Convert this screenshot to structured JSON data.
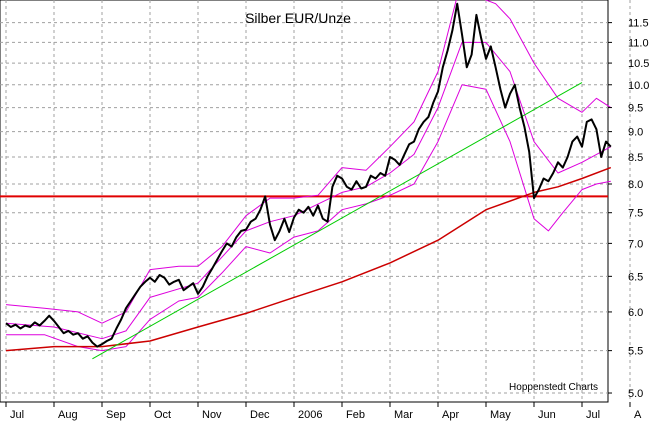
{
  "chart_data": {
    "type": "line",
    "title": "Silber EUR/Unze",
    "source_label": "Hoppenstedt Charts",
    "y_scale": "log",
    "ylim": [
      4.9,
      12.1
    ],
    "y_ticks": [
      "5.0",
      "5.5",
      "6.0",
      "6.5",
      "7.0",
      "7.5",
      "8.0",
      "8.5",
      "9.0",
      "9.5",
      "10.0",
      "10.5",
      "11.0",
      "11.5"
    ],
    "x_ticks": [
      "Jul",
      "Aug",
      "Sep",
      "Oct",
      "Nov",
      "Dec",
      "2006",
      "Feb",
      "Mar",
      "Apr",
      "May",
      "Jun",
      "Jul",
      "A"
    ],
    "x_range": [
      0,
      13.3
    ],
    "grid": true,
    "horizontal_line": {
      "y": 7.78,
      "color": "#e00000"
    },
    "trend_line": {
      "points": [
        [
          1.8,
          5.4
        ],
        [
          12.0,
          10.05
        ]
      ],
      "color": "#00cc00"
    },
    "colors": {
      "price": "#000000",
      "moving_average": "#cc0000",
      "bands": "#dd00dd",
      "grid": "#a0a0a0"
    },
    "series": [
      {
        "key": "price",
        "points": [
          [
            0.0,
            5.85
          ],
          [
            0.1,
            5.8
          ],
          [
            0.2,
            5.83
          ],
          [
            0.3,
            5.78
          ],
          [
            0.4,
            5.82
          ],
          [
            0.5,
            5.8
          ],
          [
            0.6,
            5.86
          ],
          [
            0.7,
            5.82
          ],
          [
            0.8,
            5.88
          ],
          [
            0.9,
            5.95
          ],
          [
            1.0,
            5.88
          ],
          [
            1.1,
            5.8
          ],
          [
            1.2,
            5.72
          ],
          [
            1.3,
            5.75
          ],
          [
            1.4,
            5.7
          ],
          [
            1.5,
            5.72
          ],
          [
            1.6,
            5.65
          ],
          [
            1.7,
            5.68
          ],
          [
            1.8,
            5.6
          ],
          [
            1.9,
            5.55
          ],
          [
            2.0,
            5.58
          ],
          [
            2.1,
            5.62
          ],
          [
            2.2,
            5.65
          ],
          [
            2.3,
            5.78
          ],
          [
            2.4,
            5.9
          ],
          [
            2.5,
            6.05
          ],
          [
            2.6,
            6.15
          ],
          [
            2.7,
            6.25
          ],
          [
            2.8,
            6.35
          ],
          [
            2.9,
            6.42
          ],
          [
            3.0,
            6.48
          ],
          [
            3.1,
            6.42
          ],
          [
            3.2,
            6.52
          ],
          [
            3.3,
            6.48
          ],
          [
            3.4,
            6.38
          ],
          [
            3.5,
            6.42
          ],
          [
            3.6,
            6.45
          ],
          [
            3.7,
            6.3
          ],
          [
            3.8,
            6.35
          ],
          [
            3.9,
            6.4
          ],
          [
            4.0,
            6.25
          ],
          [
            4.1,
            6.35
          ],
          [
            4.2,
            6.5
          ],
          [
            4.3,
            6.62
          ],
          [
            4.4,
            6.75
          ],
          [
            4.5,
            6.88
          ],
          [
            4.6,
            7.0
          ],
          [
            4.7,
            6.95
          ],
          [
            4.8,
            7.1
          ],
          [
            4.9,
            7.2
          ],
          [
            5.0,
            7.22
          ],
          [
            5.1,
            7.35
          ],
          [
            5.2,
            7.4
          ],
          [
            5.3,
            7.55
          ],
          [
            5.4,
            7.78
          ],
          [
            5.5,
            7.3
          ],
          [
            5.6,
            7.05
          ],
          [
            5.7,
            7.2
          ],
          [
            5.8,
            7.4
          ],
          [
            5.9,
            7.18
          ],
          [
            6.0,
            7.42
          ],
          [
            6.1,
            7.55
          ],
          [
            6.2,
            7.5
          ],
          [
            6.3,
            7.6
          ],
          [
            6.4,
            7.45
          ],
          [
            6.5,
            7.62
          ],
          [
            6.6,
            7.4
          ],
          [
            6.7,
            7.35
          ],
          [
            6.8,
            7.95
          ],
          [
            6.9,
            8.15
          ],
          [
            7.0,
            8.1
          ],
          [
            7.1,
            7.95
          ],
          [
            7.2,
            7.9
          ],
          [
            7.3,
            8.05
          ],
          [
            7.4,
            7.92
          ],
          [
            7.5,
            7.95
          ],
          [
            7.6,
            8.15
          ],
          [
            7.7,
            8.1
          ],
          [
            7.8,
            8.2
          ],
          [
            7.9,
            8.15
          ],
          [
            8.0,
            8.5
          ],
          [
            8.1,
            8.45
          ],
          [
            8.2,
            8.35
          ],
          [
            8.3,
            8.55
          ],
          [
            8.4,
            8.75
          ],
          [
            8.5,
            8.8
          ],
          [
            8.6,
            9.05
          ],
          [
            8.7,
            9.2
          ],
          [
            8.8,
            9.3
          ],
          [
            8.9,
            9.6
          ],
          [
            9.0,
            9.85
          ],
          [
            9.1,
            10.4
          ],
          [
            9.2,
            10.8
          ],
          [
            9.3,
            11.3
          ],
          [
            9.4,
            12.0
          ],
          [
            9.5,
            11.2
          ],
          [
            9.6,
            10.4
          ],
          [
            9.7,
            10.7
          ],
          [
            9.8,
            11.7
          ],
          [
            9.9,
            11.1
          ],
          [
            10.0,
            10.6
          ],
          [
            10.1,
            10.9
          ],
          [
            10.2,
            10.4
          ],
          [
            10.3,
            9.9
          ],
          [
            10.4,
            9.5
          ],
          [
            10.5,
            9.8
          ],
          [
            10.6,
            10.0
          ],
          [
            10.7,
            9.5
          ],
          [
            10.8,
            9.1
          ],
          [
            10.9,
            8.6
          ],
          [
            11.0,
            7.75
          ],
          [
            11.1,
            7.9
          ],
          [
            11.2,
            8.1
          ],
          [
            11.3,
            8.05
          ],
          [
            11.4,
            8.2
          ],
          [
            11.5,
            8.4
          ],
          [
            11.6,
            8.3
          ],
          [
            11.7,
            8.5
          ],
          [
            11.8,
            8.8
          ],
          [
            11.9,
            8.9
          ],
          [
            12.0,
            8.7
          ],
          [
            12.1,
            9.2
          ],
          [
            12.2,
            9.25
          ],
          [
            12.3,
            9.05
          ],
          [
            12.4,
            8.5
          ],
          [
            12.5,
            8.8
          ],
          [
            12.6,
            8.7
          ]
        ]
      },
      {
        "key": "moving_average",
        "points": [
          [
            0.0,
            5.5
          ],
          [
            1.0,
            5.55
          ],
          [
            2.0,
            5.55
          ],
          [
            3.0,
            5.62
          ],
          [
            4.0,
            5.8
          ],
          [
            5.0,
            5.98
          ],
          [
            6.0,
            6.2
          ],
          [
            7.0,
            6.42
          ],
          [
            8.0,
            6.7
          ],
          [
            9.0,
            7.05
          ],
          [
            10.0,
            7.55
          ],
          [
            11.0,
            7.85
          ],
          [
            11.5,
            7.95
          ],
          [
            12.0,
            8.1
          ],
          [
            12.6,
            8.3
          ]
        ]
      },
      {
        "key": "band_upper",
        "points": [
          [
            0.0,
            6.1
          ],
          [
            0.8,
            6.05
          ],
          [
            1.5,
            6.0
          ],
          [
            2.0,
            5.85
          ],
          [
            2.5,
            6.0
          ],
          [
            3.0,
            6.6
          ],
          [
            3.6,
            6.65
          ],
          [
            4.0,
            6.65
          ],
          [
            4.5,
            6.95
          ],
          [
            5.0,
            7.45
          ],
          [
            5.5,
            7.75
          ],
          [
            6.0,
            7.75
          ],
          [
            6.5,
            7.8
          ],
          [
            7.0,
            8.3
          ],
          [
            7.5,
            8.25
          ],
          [
            8.0,
            8.7
          ],
          [
            8.5,
            9.2
          ],
          [
            9.0,
            10.3
          ],
          [
            9.4,
            12.2
          ],
          [
            9.8,
            12.2
          ],
          [
            10.2,
            12.0
          ],
          [
            10.5,
            11.6
          ],
          [
            11.0,
            10.5
          ],
          [
            11.5,
            9.7
          ],
          [
            12.0,
            9.4
          ],
          [
            12.3,
            9.7
          ],
          [
            12.6,
            9.5
          ]
        ]
      },
      {
        "key": "band_lower",
        "points": [
          [
            0.0,
            5.7
          ],
          [
            0.8,
            5.7
          ],
          [
            1.5,
            5.55
          ],
          [
            2.0,
            5.5
          ],
          [
            2.5,
            5.55
          ],
          [
            3.0,
            5.9
          ],
          [
            3.6,
            6.15
          ],
          [
            4.0,
            6.2
          ],
          [
            4.5,
            6.55
          ],
          [
            5.0,
            6.95
          ],
          [
            5.5,
            6.85
          ],
          [
            6.0,
            7.1
          ],
          [
            6.5,
            7.2
          ],
          [
            7.0,
            7.55
          ],
          [
            7.5,
            7.65
          ],
          [
            8.0,
            7.8
          ],
          [
            8.5,
            8.0
          ],
          [
            9.0,
            8.8
          ],
          [
            9.5,
            10.0
          ],
          [
            10.0,
            9.9
          ],
          [
            10.5,
            8.8
          ],
          [
            11.0,
            7.4
          ],
          [
            11.3,
            7.2
          ],
          [
            11.6,
            7.5
          ],
          [
            12.0,
            7.9
          ],
          [
            12.3,
            8.0
          ],
          [
            12.6,
            8.05
          ]
        ]
      },
      {
        "key": "band_middle",
        "points": [
          [
            0.0,
            5.85
          ],
          [
            1.0,
            5.8
          ],
          [
            2.0,
            5.65
          ],
          [
            2.5,
            5.75
          ],
          [
            3.0,
            6.2
          ],
          [
            4.0,
            6.4
          ],
          [
            5.0,
            7.2
          ],
          [
            5.5,
            7.35
          ],
          [
            6.0,
            7.45
          ],
          [
            7.0,
            7.85
          ],
          [
            7.5,
            7.95
          ],
          [
            8.0,
            8.2
          ],
          [
            8.5,
            8.55
          ],
          [
            9.0,
            9.5
          ],
          [
            9.5,
            11.0
          ],
          [
            10.0,
            11.0
          ],
          [
            10.5,
            10.3
          ],
          [
            11.0,
            8.8
          ],
          [
            11.5,
            8.2
          ],
          [
            12.0,
            8.4
          ],
          [
            12.6,
            8.7
          ]
        ]
      }
    ]
  }
}
